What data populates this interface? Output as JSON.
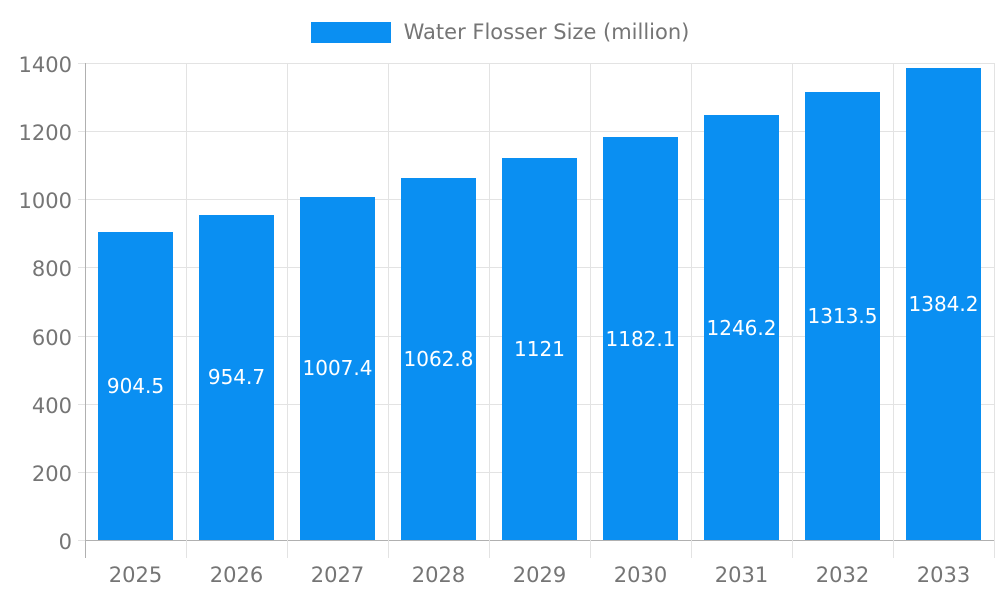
{
  "chart_data": {
    "type": "bar",
    "title": "",
    "legend": {
      "label": "Water Flosser Size (million)",
      "position": "top",
      "swatch_color": "#0a8ff2"
    },
    "categories": [
      "2025",
      "2026",
      "2027",
      "2028",
      "2029",
      "2030",
      "2031",
      "2032",
      "2033"
    ],
    "series": [
      {
        "name": "Water Flosser Size (million)",
        "values": [
          904.5,
          954.7,
          1007.4,
          1062.8,
          1121,
          1182.1,
          1246.2,
          1313.5,
          1384.2
        ]
      }
    ],
    "value_labels": [
      "904.5",
      "954.7",
      "1007.4",
      "1062.8",
      "1121",
      "1182.1",
      "1246.2",
      "1313.5",
      "1384.2"
    ],
    "xlabel": "",
    "ylabel": "",
    "ylim": [
      0,
      1400
    ],
    "y_ticks": [
      0,
      200,
      400,
      600,
      800,
      1000,
      1200,
      1400
    ],
    "grid": true,
    "value_label_position": "inside-center",
    "colors": {
      "bar": "#0a8ff2",
      "bar_label": "#ffffff",
      "axis_text": "#757575",
      "grid_line": "#e3e3e3",
      "axis_line": "#b0b0b0",
      "background": "#ffffff"
    }
  }
}
